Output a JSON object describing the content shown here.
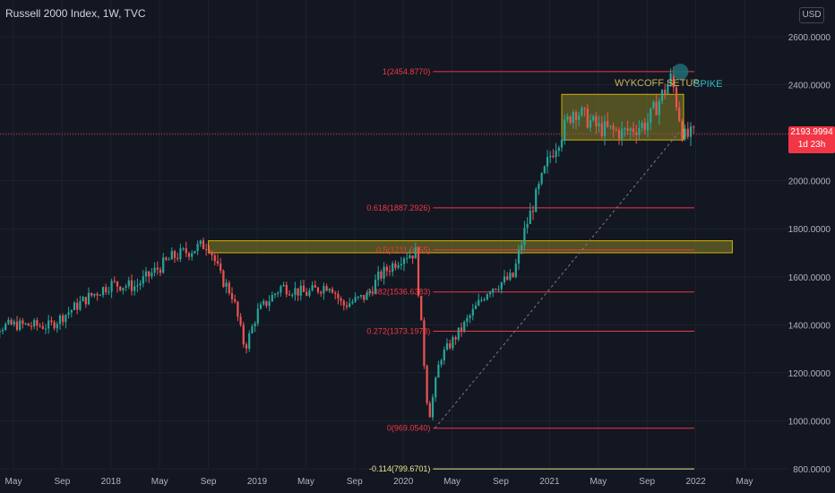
{
  "header": {
    "title": "Russell 2000 Index, 1W, TVC",
    "currency": "USD"
  },
  "price_tag": {
    "price": "2193.9994",
    "countdown": "1d 23h"
  },
  "colors": {
    "background": "#131722",
    "up": "#26a69a",
    "down": "#ef5350",
    "fib_line": "#f23645",
    "zone_fill": "#9e9a26",
    "text": "#b2b5be"
  },
  "annotations": {
    "setup_label": "WYKCOFF SETUP",
    "spike_label": "SPIKE"
  },
  "chart_data": {
    "type": "candlestick",
    "title": "Russell 2000 Index, 1W, TVC",
    "ylim": [
      790,
      2670
    ],
    "y_ticks": [
      {
        "value": 2600,
        "label": "2600.0000"
      },
      {
        "value": 2400,
        "label": "2400.0000"
      },
      {
        "value": 2200,
        "label": "2200.0000"
      },
      {
        "value": 2000,
        "label": "2000.0000"
      },
      {
        "value": 1800,
        "label": "1800.0000"
      },
      {
        "value": 1600,
        "label": "1600.0000"
      },
      {
        "value": 1400,
        "label": "1400.0000"
      },
      {
        "value": 1200,
        "label": "1200.0000"
      },
      {
        "value": 1000,
        "label": "1000.0000"
      },
      {
        "value": 800,
        "label": "800.0000"
      }
    ],
    "x_ticks": [
      {
        "date": "2017-05",
        "label": "May"
      },
      {
        "date": "2017-09",
        "label": "Sep"
      },
      {
        "date": "2018-01",
        "label": "2018"
      },
      {
        "date": "2018-05",
        "label": "May"
      },
      {
        "date": "2018-09",
        "label": "Sep"
      },
      {
        "date": "2019-01",
        "label": "2019"
      },
      {
        "date": "2019-05",
        "label": "May"
      },
      {
        "date": "2019-09",
        "label": "Sep"
      },
      {
        "date": "2020-01",
        "label": "2020"
      },
      {
        "date": "2020-05",
        "label": "May"
      },
      {
        "date": "2020-09",
        "label": "Sep"
      },
      {
        "date": "2021-01",
        "label": "2021"
      },
      {
        "date": "2021-05",
        "label": "May"
      },
      {
        "date": "2021-09",
        "label": "Sep"
      },
      {
        "date": "2022-01",
        "label": "2022"
      },
      {
        "date": "2022-05",
        "label": "May"
      }
    ],
    "price_path": [
      [
        "2017-02",
        1380
      ],
      [
        "2017-05",
        1400
      ],
      [
        "2017-08",
        1395
      ],
      [
        "2017-11",
        1510
      ],
      [
        "2018-01",
        1570
      ],
      [
        "2018-03",
        1560
      ],
      [
        "2018-06",
        1680
      ],
      [
        "2018-08",
        1720
      ],
      [
        "2018-09",
        1740
      ],
      [
        "2018-10",
        1600
      ],
      [
        "2018-11",
        1520
      ],
      [
        "2018-12",
        1300
      ],
      [
        "2019-01",
        1450
      ],
      [
        "2019-03",
        1560
      ],
      [
        "2019-05",
        1530
      ],
      [
        "2019-07",
        1570
      ],
      [
        "2019-08",
        1480
      ],
      [
        "2019-10",
        1520
      ],
      [
        "2019-11",
        1600
      ],
      [
        "2020-01",
        1690
      ],
      [
        "2020-02",
        1700
      ],
      [
        "2020-03",
        1050
      ],
      [
        "2020-03",
        980
      ],
      [
        "2020-04",
        1260
      ],
      [
        "2020-06",
        1400
      ],
      [
        "2020-08",
        1550
      ],
      [
        "2020-10",
        1600
      ],
      [
        "2020-11",
        1800
      ],
      [
        "2021-01",
        2100
      ],
      [
        "2021-03",
        2300
      ],
      [
        "2021-05",
        2220
      ],
      [
        "2021-07",
        2200
      ],
      [
        "2021-09",
        2240
      ],
      [
        "2021-11",
        2430
      ],
      [
        "2021-12",
        2180
      ],
      [
        "2022-01",
        2194
      ]
    ],
    "fib_levels": [
      {
        "label": "1(2454.8770)",
        "value": 2454.877
      },
      {
        "label": "0.618(1887.2926)",
        "value": 1887.2926
      },
      {
        "label": "0.5(1711.9655)",
        "value": 1711.9655
      },
      {
        "label": "0.382(1536.6383)",
        "value": 1536.6383
      },
      {
        "label": "0.272(1373.1978)",
        "value": 1373.1978
      },
      {
        "label": "0(969.0540)",
        "value": 969.054
      },
      {
        "label": "-0.114(799.6701)",
        "value": 799.6701
      }
    ],
    "zones": [
      {
        "name": "resistance-zone",
        "y": [
          1700,
          1750
        ],
        "x": [
          "2018-09",
          "2022-04"
        ]
      },
      {
        "name": "wyckoff-range",
        "y": [
          2170,
          2360
        ],
        "x": [
          "2021-02",
          "2021-12"
        ]
      }
    ],
    "current_price": 2193.9994
  }
}
